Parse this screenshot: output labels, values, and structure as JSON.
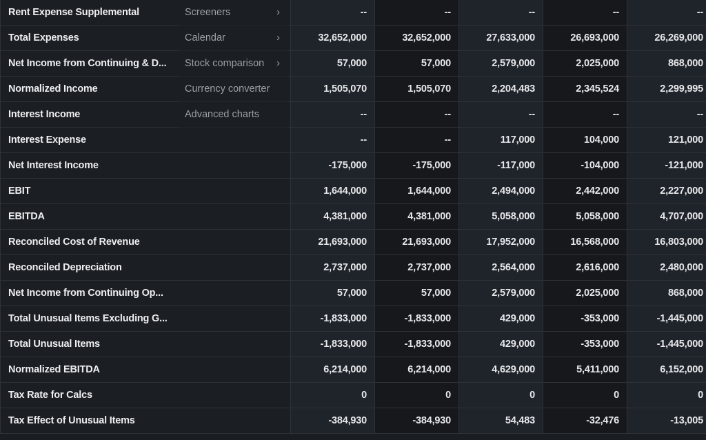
{
  "table": {
    "rows": [
      {
        "label": "Rent Expense Supplemental",
        "values": [
          "--",
          "--",
          "--",
          "--",
          "--"
        ]
      },
      {
        "label": "Total Expenses",
        "values": [
          "32,652,000",
          "32,652,000",
          "27,633,000",
          "26,693,000",
          "26,269,000"
        ]
      },
      {
        "label": "Net Income from Continuing & D...",
        "values": [
          "57,000",
          "57,000",
          "2,579,000",
          "2,025,000",
          "868,000"
        ]
      },
      {
        "label": "Normalized Income",
        "values": [
          "1,505,070",
          "1,505,070",
          "2,204,483",
          "2,345,524",
          "2,299,995"
        ]
      },
      {
        "label": "Interest Income",
        "values": [
          "--",
          "--",
          "--",
          "--",
          "--"
        ]
      },
      {
        "label": "Interest Expense",
        "values": [
          "--",
          "--",
          "117,000",
          "104,000",
          "121,000"
        ]
      },
      {
        "label": "Net Interest Income",
        "values": [
          "-175,000",
          "-175,000",
          "-117,000",
          "-104,000",
          "-121,000"
        ]
      },
      {
        "label": "EBIT",
        "values": [
          "1,644,000",
          "1,644,000",
          "2,494,000",
          "2,442,000",
          "2,227,000"
        ]
      },
      {
        "label": "EBITDA",
        "values": [
          "4,381,000",
          "4,381,000",
          "5,058,000",
          "5,058,000",
          "4,707,000"
        ]
      },
      {
        "label": "Reconciled Cost of Revenue",
        "values": [
          "21,693,000",
          "21,693,000",
          "17,952,000",
          "16,568,000",
          "16,803,000"
        ]
      },
      {
        "label": "Reconciled Depreciation",
        "values": [
          "2,737,000",
          "2,737,000",
          "2,564,000",
          "2,616,000",
          "2,480,000"
        ]
      },
      {
        "label": "Net Income from Continuing Op...",
        "values": [
          "57,000",
          "57,000",
          "2,579,000",
          "2,025,000",
          "868,000"
        ]
      },
      {
        "label": "Total Unusual Items Excluding G...",
        "values": [
          "-1,833,000",
          "-1,833,000",
          "429,000",
          "-353,000",
          "-1,445,000"
        ]
      },
      {
        "label": "Total Unusual Items",
        "values": [
          "-1,833,000",
          "-1,833,000",
          "429,000",
          "-353,000",
          "-1,445,000"
        ]
      },
      {
        "label": "Normalized EBITDA",
        "values": [
          "6,214,000",
          "6,214,000",
          "4,629,000",
          "5,411,000",
          "6,152,000"
        ]
      },
      {
        "label": "Tax Rate for Calcs",
        "values": [
          "0",
          "0",
          "0",
          "0",
          "0"
        ]
      },
      {
        "label": "Tax Effect of Unusual Items",
        "values": [
          "-384,930",
          "-384,930",
          "54,483",
          "-32,476",
          "-13,005"
        ]
      }
    ]
  },
  "menu": {
    "items": [
      {
        "label": "Screeners",
        "has_submenu": true
      },
      {
        "label": "Calendar",
        "has_submenu": true
      },
      {
        "label": "Stock comparison",
        "has_submenu": true
      },
      {
        "label": "Currency converter",
        "has_submenu": false
      },
      {
        "label": "Advanced charts",
        "has_submenu": false
      }
    ],
    "chevron": "›"
  }
}
